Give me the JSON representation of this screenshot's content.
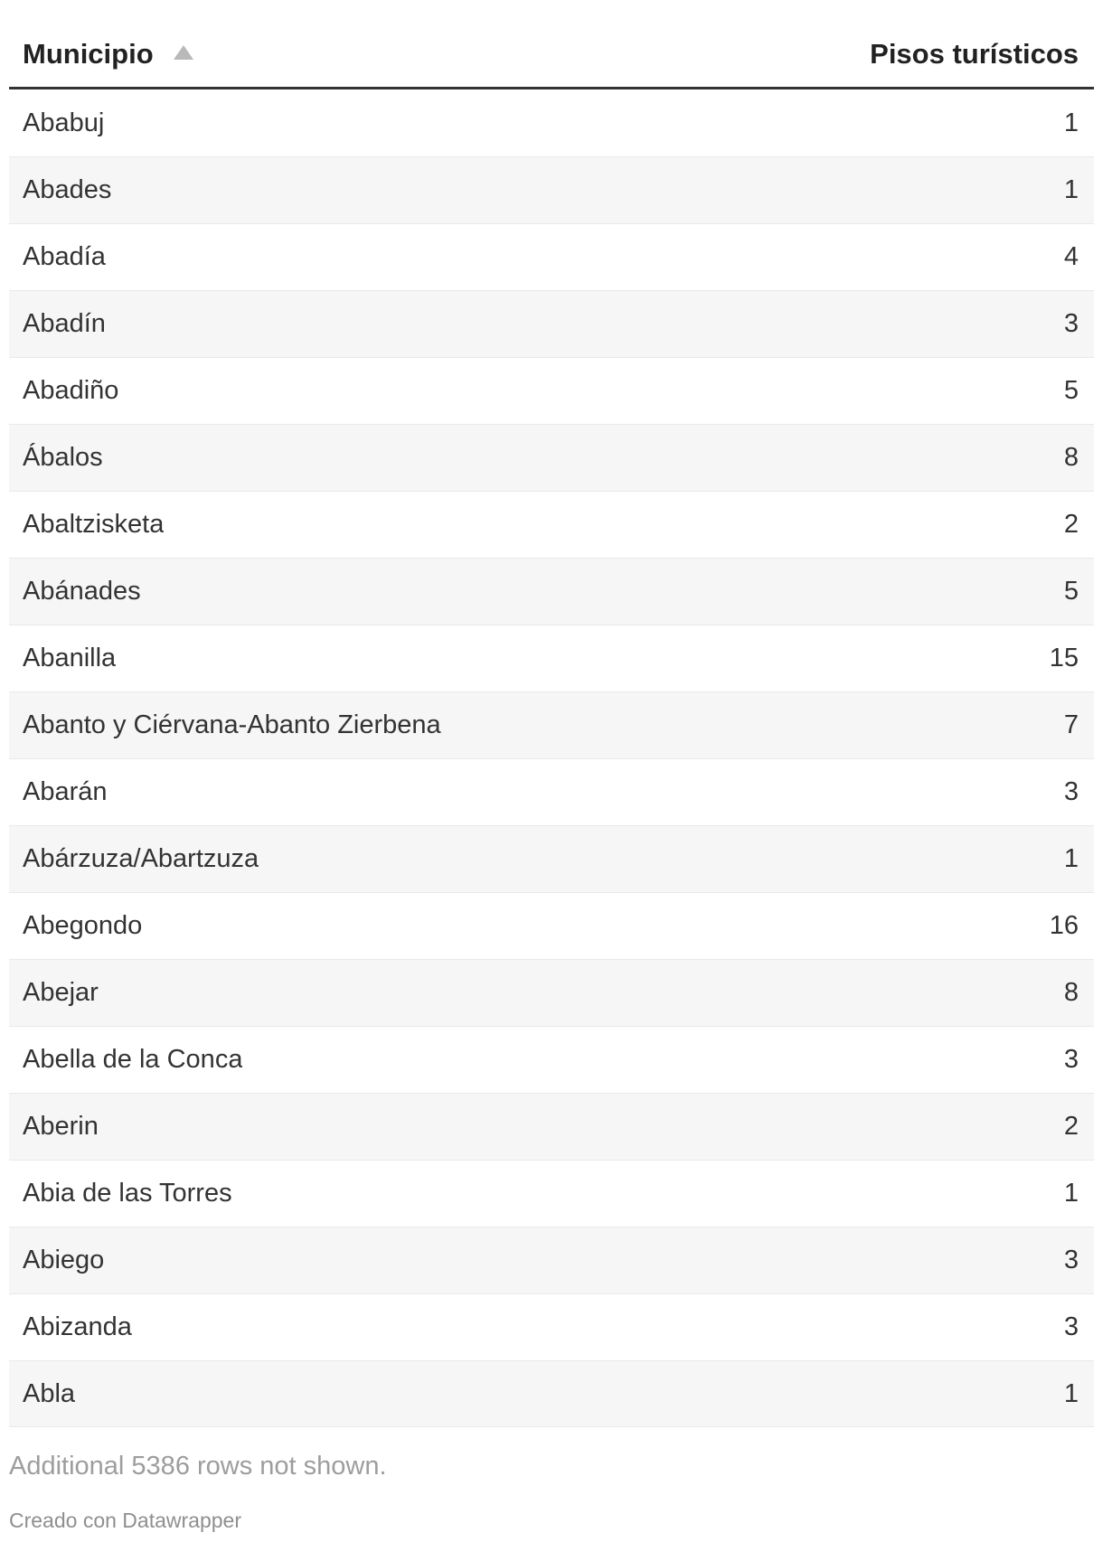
{
  "chart_data": {
    "type": "table",
    "columns": [
      "Municipio",
      "Pisos turísticos"
    ],
    "sort": {
      "column": "Municipio",
      "direction": "ascending"
    },
    "rows": [
      [
        "Ababuj",
        1
      ],
      [
        "Abades",
        1
      ],
      [
        "Abadía",
        4
      ],
      [
        "Abadín",
        3
      ],
      [
        "Abadiño",
        5
      ],
      [
        "Ábalos",
        8
      ],
      [
        "Abaltzisketa",
        2
      ],
      [
        "Abánades",
        5
      ],
      [
        "Abanilla",
        15
      ],
      [
        "Abanto y Ciérvana-Abanto Zierbena",
        7
      ],
      [
        "Abarán",
        3
      ],
      [
        "Abárzuza/Abartzuza",
        1
      ],
      [
        "Abegondo",
        16
      ],
      [
        "Abejar",
        8
      ],
      [
        "Abella de la Conca",
        3
      ],
      [
        "Aberin",
        2
      ],
      [
        "Abia de las Torres",
        1
      ],
      [
        "Abiego",
        3
      ],
      [
        "Abizanda",
        3
      ],
      [
        "Abla",
        1
      ]
    ],
    "note": "Additional 5386 rows not shown.",
    "layout_hints": {
      "striped_rows": true,
      "stripe_color": "#f6f6f6",
      "header_border_color": "#333333",
      "row_border_color": "#e9e9e9",
      "text_color": "#333333",
      "note_color": "#9d9d9d",
      "sort_icon_color": "#b9b9b9"
    }
  },
  "footer": {
    "additional_note": "Additional 5386 rows not shown.",
    "credit": "Creado con Datawrapper"
  }
}
